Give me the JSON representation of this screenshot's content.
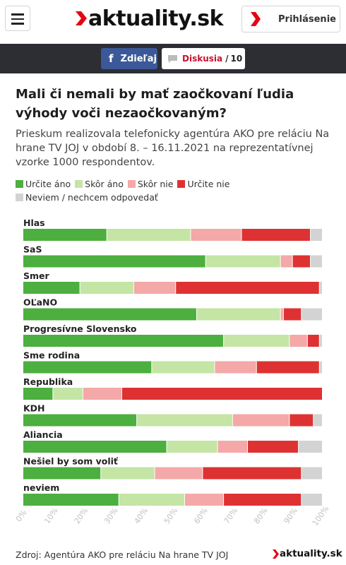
{
  "header": {
    "logo_text": "aktuality.sk",
    "login_label": "Prihlásenie",
    "brand_color": "#e30613"
  },
  "share": {
    "facebook_icon": "f",
    "facebook_label": "Zdieľaj",
    "discussion_label": "Diskusia",
    "discussion_separator": "/",
    "discussion_count": "10"
  },
  "article": {
    "title": "Mali či nemali by mať zaočkovaní ľudia výhody voči nezaočkovaným?",
    "subtitle": "Prieskum realizovala telefonicky agentúra AKO pre reláciu Na hrane TV JOJ v období 8. – 16.11.2021 na reprezentatívnej vzorke 1000 respondentov."
  },
  "footer": {
    "source": "Zdroj: Agentúra AKO pre reláciu Na hrane TV JOJ",
    "logo_text": "aktuality.sk"
  },
  "chart_data": {
    "type": "bar",
    "orientation": "horizontal",
    "stacked": true,
    "title": "Mali či nemali by mať zaočkovaní ľudia výhody voči nezaočkovaným?",
    "categories": [
      "Hlas",
      "SaS",
      "Smer",
      "OĽaNO",
      "Progresívne Slovensko",
      "Sme rodina",
      "Republika",
      "KDH",
      "Aliancia",
      "Nešiel by som voliť",
      "neviem"
    ],
    "series": [
      {
        "name": "Určite áno",
        "color": "#4caf3f",
        "values": [
          28,
          61,
          19,
          58,
          67,
          43,
          10,
          38,
          48,
          26,
          32
        ]
      },
      {
        "name": "Skôr áno",
        "color": "#c4e5a4",
        "values": [
          28,
          25,
          18,
          28,
          22,
          21,
          10,
          32,
          17,
          18,
          22
        ]
      },
      {
        "name": "Skôr nie",
        "color": "#f4a8a8",
        "values": [
          17,
          4,
          14,
          1,
          6,
          14,
          13,
          19,
          10,
          16,
          13
        ]
      },
      {
        "name": "Určite nie",
        "color": "#de3232",
        "values": [
          23,
          6,
          48,
          6,
          4,
          21,
          67,
          8,
          17,
          33,
          26
        ]
      },
      {
        "name": "Neviem / nechcem odpovedať",
        "color": "#d3d3d3",
        "values": [
          4,
          4,
          1,
          7,
          1,
          1,
          0,
          3,
          8,
          7,
          7
        ]
      }
    ],
    "xlim": [
      0,
      100
    ],
    "x_ticks": [
      "0%",
      "10%",
      "20%",
      "30%",
      "40%",
      "50%",
      "60%",
      "70%",
      "80%",
      "90%",
      "100%"
    ],
    "legend_position": "top",
    "grid": false
  }
}
